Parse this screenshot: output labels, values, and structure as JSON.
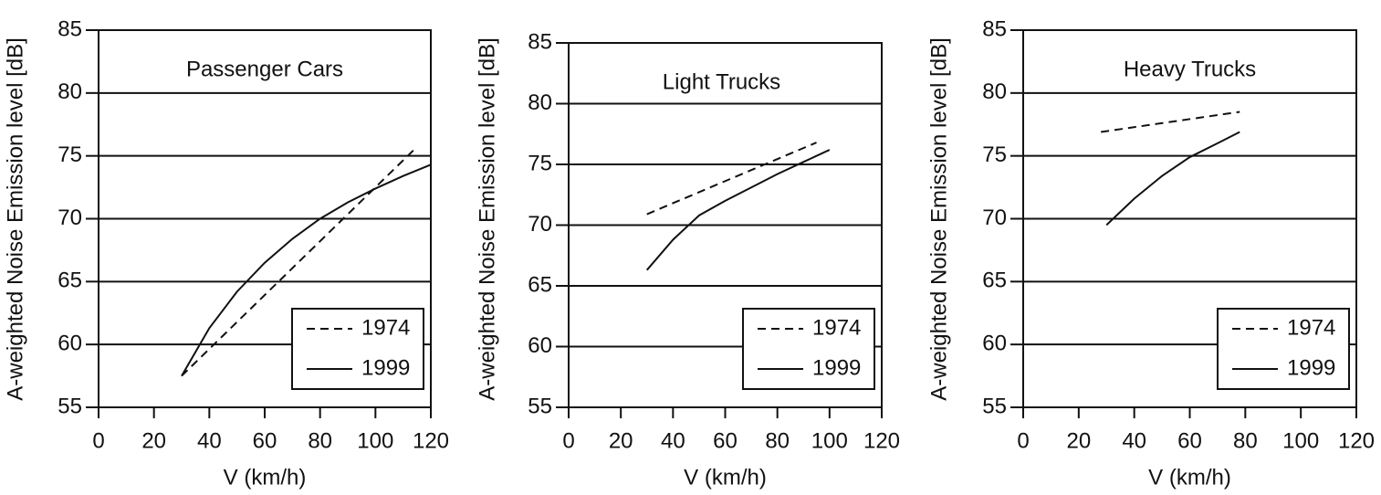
{
  "chart_data": [
    {
      "type": "line",
      "title": "Passenger Cars",
      "xlabel": "V (km/h)",
      "ylabel": "A-weighted Noise Emission level [dB]",
      "xlim": [
        0,
        120
      ],
      "xticks": [
        0,
        20,
        40,
        60,
        80,
        100,
        120
      ],
      "ylim": [
        55,
        85
      ],
      "yticks": [
        55,
        60,
        65,
        70,
        75,
        80,
        85
      ],
      "grid": true,
      "legend": "lower right",
      "series": [
        {
          "name": "1974",
          "color": "#111111",
          "dash": true,
          "x": [
            30,
            114
          ],
          "values": [
            57.5,
            75.5
          ]
        },
        {
          "name": "1999",
          "color": "#111111",
          "dash": false,
          "x": [
            30,
            40,
            50,
            60,
            70,
            80,
            90,
            100,
            110,
            120
          ],
          "values": [
            57.5,
            61.3,
            64.2,
            66.5,
            68.4,
            70,
            71.3,
            72.4,
            73.4,
            74.3
          ]
        }
      ]
    },
    {
      "type": "line",
      "title": "Light Trucks",
      "xlabel": "V (km/h)",
      "ylabel": "A-weighted Noise Emission level [dB]",
      "xlim": [
        0,
        120
      ],
      "xticks": [
        0,
        20,
        40,
        60,
        80,
        100,
        120
      ],
      "ylim": [
        55,
        85
      ],
      "yticks": [
        55,
        60,
        65,
        70,
        75,
        80,
        85
      ],
      "grid": true,
      "legend": "lower right",
      "series": [
        {
          "name": "1974",
          "color": "#111111",
          "dash": true,
          "x": [
            30,
            95
          ],
          "values": [
            70.9,
            76.8
          ]
        },
        {
          "name": "1999",
          "color": "#111111",
          "dash": false,
          "x": [
            30,
            40,
            50,
            60,
            70,
            80,
            90,
            100
          ],
          "values": [
            66.3,
            68.8,
            70.8,
            72,
            73.1,
            74.2,
            75.2,
            76.2
          ]
        }
      ]
    },
    {
      "type": "line",
      "title": "Heavy Trucks",
      "xlabel": "V (km/h)",
      "ylabel": "A-weighted Noise Emission level [dB]",
      "xlim": [
        0,
        120
      ],
      "xticks": [
        0,
        20,
        40,
        60,
        80,
        100,
        120
      ],
      "ylim": [
        55,
        85
      ],
      "yticks": [
        55,
        60,
        65,
        70,
        75,
        80,
        85
      ],
      "grid": true,
      "legend": "lower right",
      "series": [
        {
          "name": "1974",
          "color": "#111111",
          "dash": true,
          "x": [
            28,
            78
          ],
          "values": [
            76.9,
            78.5
          ]
        },
        {
          "name": "1999",
          "color": "#111111",
          "dash": false,
          "x": [
            30,
            40,
            50,
            60,
            70,
            78
          ],
          "values": [
            69.5,
            71.6,
            73.4,
            74.9,
            76,
            76.9
          ]
        }
      ]
    }
  ]
}
